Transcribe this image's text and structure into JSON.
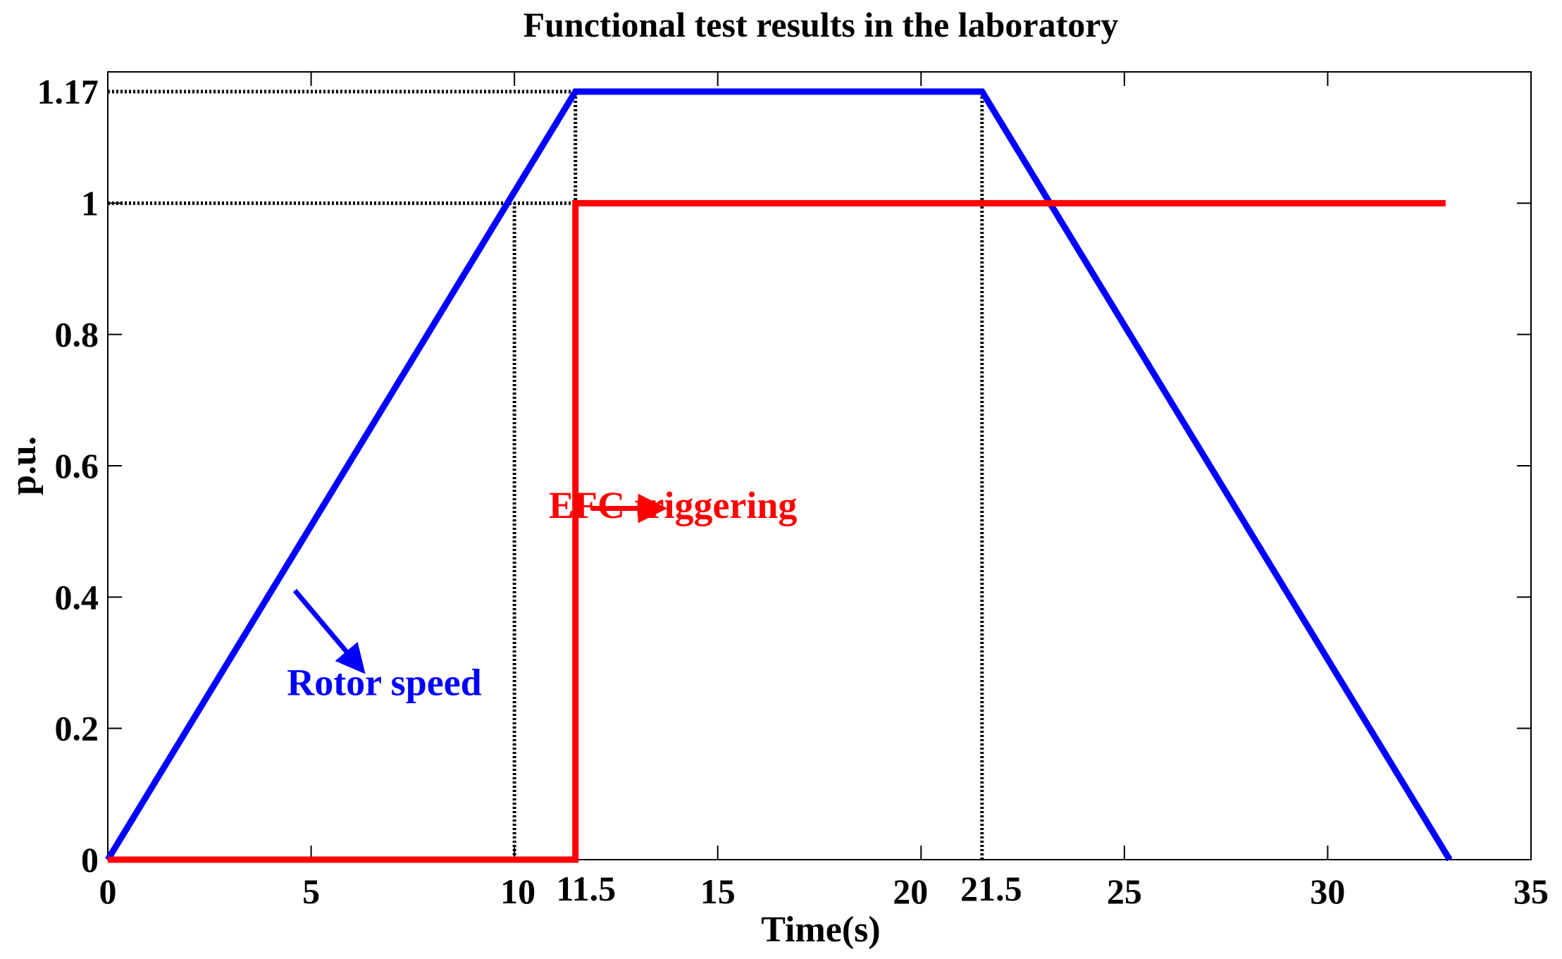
{
  "chart_data": {
    "type": "line",
    "title": "Functional test results in the laboratory",
    "xlabel": "Time(s)",
    "ylabel": "p.u.",
    "xlim": [
      0,
      35
    ],
    "ylim": [
      0,
      1.2
    ],
    "x_ticks": [
      "0",
      "5",
      "10",
      "11.5",
      "15",
      "20",
      "21.5",
      "25",
      "30",
      "35"
    ],
    "x_tick_values": [
      0,
      5,
      10,
      11.5,
      15,
      20,
      21.5,
      25,
      30,
      35
    ],
    "y_ticks": [
      "0",
      "0.2",
      "0.4",
      "0.6",
      "0.8",
      "1",
      "1.17"
    ],
    "y_tick_values": [
      0,
      0.2,
      0.4,
      0.6,
      0.8,
      1,
      1.17
    ],
    "grid": false,
    "series": [
      {
        "name": "Rotor speed",
        "color": "#0000ff",
        "points": [
          [
            0,
            0
          ],
          [
            11.5,
            1.17
          ],
          [
            21.5,
            1.17
          ],
          [
            33,
            0
          ]
        ]
      },
      {
        "name": "EFC triggering",
        "color": "#ff0000",
        "points": [
          [
            0,
            0
          ],
          [
            11.5,
            0
          ],
          [
            11.5,
            1
          ],
          [
            32.9,
            1
          ]
        ]
      }
    ],
    "reference_lines": [
      {
        "type": "h",
        "y": 1.17,
        "x_from": 0,
        "x_to": 11.5
      },
      {
        "type": "h",
        "y": 1,
        "x_from": 0,
        "x_to": 11.5
      },
      {
        "type": "v",
        "x": 10,
        "y_from": 0,
        "y_to": 1
      },
      {
        "type": "v",
        "x": 11.5,
        "y_from": 0,
        "y_to": 1.17
      },
      {
        "type": "v",
        "x": 21.5,
        "y_from": 0,
        "y_to": 1.17
      }
    ],
    "annotations": [
      {
        "text": "Rotor speed",
        "color": "#0000ff",
        "x": 6.8,
        "y": 0.27,
        "arrow_from": [
          4.6,
          0.41
        ],
        "arrow_to": [
          6.1,
          0.3
        ]
      },
      {
        "text": "EFC triggering",
        "color": "#ff0000",
        "x": 13.9,
        "y": 0.54,
        "arrow_from": [
          11.9,
          0.535
        ],
        "arrow_to": [
          13.4,
          0.535
        ]
      }
    ]
  }
}
